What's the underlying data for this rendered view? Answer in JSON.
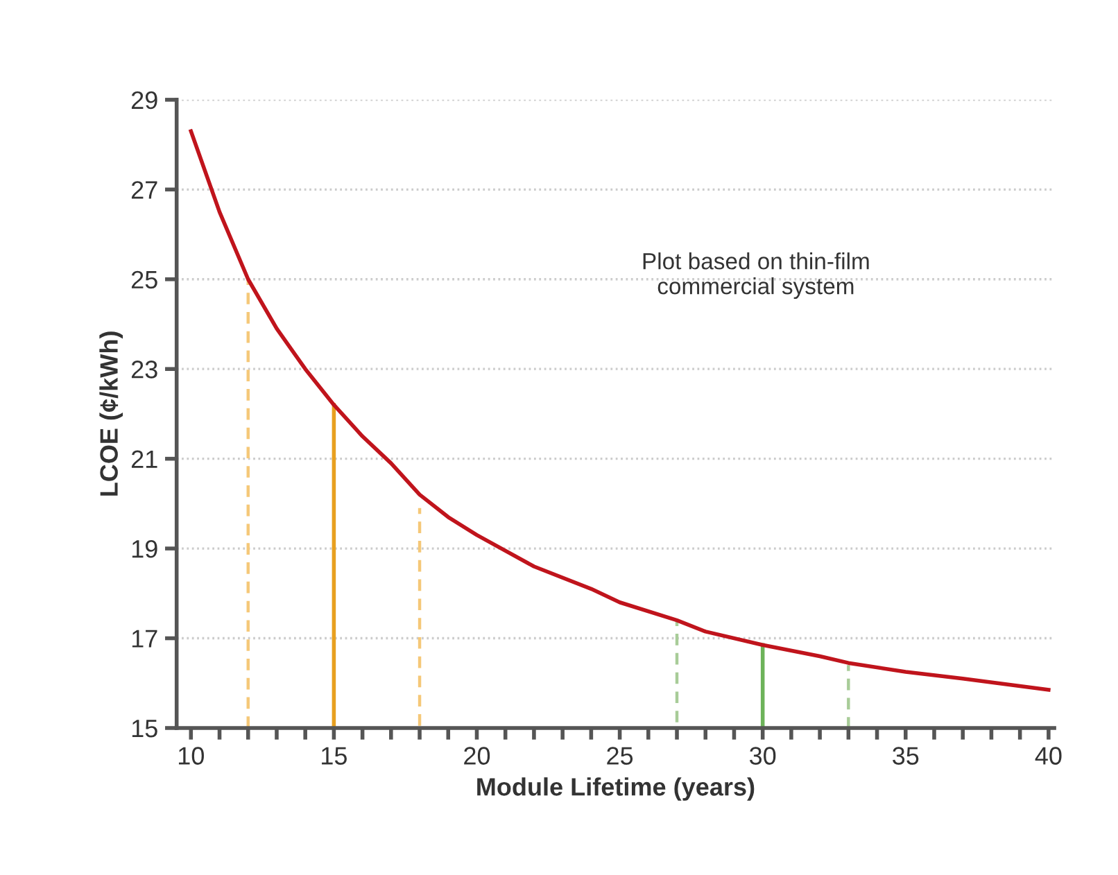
{
  "chart_data": {
    "type": "line",
    "xlabel": "Module Lifetime (years)",
    "ylabel": "LCOE (¢/kWh)",
    "annotations": [
      "Plot based on thin-film\ncommercial system"
    ],
    "xlim": [
      9.5,
      40.2
    ],
    "ylim": [
      15,
      29
    ],
    "xticks": [
      10,
      {
        "value": 11,
        "label": null
      },
      {
        "value": 12,
        "label": null
      },
      {
        "value": 13,
        "label": null
      },
      {
        "value": 14,
        "label": null
      },
      15,
      {
        "value": 16,
        "label": null
      },
      {
        "value": 17,
        "label": null
      },
      {
        "value": 18,
        "label": null
      },
      {
        "value": 19,
        "label": null
      },
      20,
      {
        "value": 21,
        "label": null
      },
      {
        "value": 22,
        "label": null
      },
      {
        "value": 23,
        "label": null
      },
      {
        "value": 24,
        "label": null
      },
      25,
      {
        "value": 26,
        "label": null
      },
      {
        "value": 27,
        "label": null
      },
      {
        "value": 28,
        "label": null
      },
      {
        "value": 29,
        "label": null
      },
      30,
      {
        "value": 31,
        "label": null
      },
      {
        "value": 32,
        "label": null
      },
      {
        "value": 33,
        "label": null
      },
      {
        "value": 34,
        "label": null
      },
      35,
      {
        "value": 36,
        "label": null
      },
      {
        "value": 37,
        "label": null
      },
      {
        "value": 38,
        "label": null
      },
      {
        "value": 39,
        "label": null
      },
      40
    ],
    "yticks": [
      15,
      17,
      19,
      21,
      23,
      25,
      27,
      29
    ],
    "grid": "y",
    "marker": "none",
    "series": [
      {
        "color": "#c0141c",
        "line_style": "solid",
        "x": [
          10,
          11,
          12,
          13,
          14,
          15,
          16,
          17,
          18,
          19,
          20,
          22,
          24,
          25,
          27,
          28,
          30,
          32,
          33,
          35,
          37,
          40
        ],
        "values": [
          28.3,
          26.5,
          25.0,
          23.9,
          23.0,
          22.2,
          21.5,
          20.9,
          20.2,
          19.7,
          19.3,
          18.6,
          18.1,
          17.8,
          17.4,
          17.15,
          16.85,
          16.6,
          16.45,
          16.25,
          16.1,
          15.85
        ]
      },
      {
        "color": "#f5c878",
        "line_style": "dashed",
        "x": [
          12,
          12
        ],
        "values": [
          15,
          25.0
        ]
      },
      {
        "color": "#e8a020",
        "line_style": "solid",
        "x": [
          15,
          15
        ],
        "values": [
          15,
          22.2
        ]
      },
      {
        "color": "#f5c878",
        "line_style": "dashed",
        "x": [
          18,
          18
        ],
        "values": [
          15,
          19.9
        ]
      },
      {
        "color": "#a8cc98",
        "line_style": "dashed",
        "x": [
          27,
          27
        ],
        "values": [
          15,
          17.4
        ]
      },
      {
        "color": "#6db35a",
        "line_style": "solid",
        "x": [
          30,
          30
        ],
        "values": [
          15,
          16.85
        ]
      },
      {
        "color": "#a8cc98",
        "line_style": "dashed",
        "x": [
          33,
          33
        ],
        "values": [
          15,
          16.4
        ]
      }
    ]
  }
}
